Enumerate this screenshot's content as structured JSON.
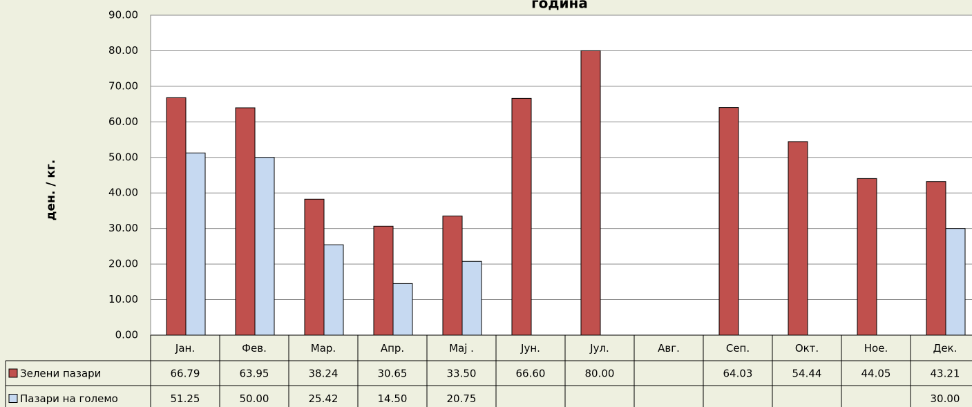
{
  "chart_data": {
    "type": "bar",
    "title": "година",
    "ylabel": "ден. / кг.",
    "categories": [
      "Јан.",
      "Фев.",
      "Мар.",
      "Апр.",
      "Мај .",
      "Јун.",
      "Јул.",
      "Авг.",
      "Сеп.",
      "Окт.",
      "Ное.",
      "Дек."
    ],
    "series": [
      {
        "name": "Зелени пазари",
        "color": "#c0504d",
        "values": [
          66.79,
          63.95,
          38.24,
          30.65,
          33.5,
          66.6,
          80,
          null,
          64.03,
          54.44,
          44.05,
          43.21
        ],
        "value_labels": [
          "66.79",
          "63.95",
          "38.24",
          "30.65",
          "33.50",
          "66.60",
          "80.00",
          null,
          "64.03",
          "54.44",
          "44.05",
          "43.21"
        ]
      },
      {
        "name": "Пазари на големо",
        "color": "#c6d9f1",
        "values": [
          51.25,
          50,
          25.42,
          14.5,
          20.75,
          null,
          null,
          null,
          null,
          null,
          null,
          30
        ],
        "value_labels": [
          "51.25",
          "50.00",
          "25.42",
          "14.50",
          "20.75",
          null,
          null,
          null,
          null,
          null,
          null,
          "30.00"
        ]
      }
    ],
    "ylim": [
      0,
      90
    ],
    "yticks": [
      {
        "value": 0,
        "label": "0.00"
      },
      {
        "value": 10,
        "label": "10.00"
      },
      {
        "value": 20,
        "label": "20.00"
      },
      {
        "value": 30,
        "label": "30.00"
      },
      {
        "value": 40,
        "label": "40.00"
      },
      {
        "value": 50,
        "label": "50.00"
      },
      {
        "value": 60,
        "label": "60.00"
      },
      {
        "value": 70,
        "label": "70.00"
      },
      {
        "value": 80,
        "label": "80.00"
      },
      {
        "value": 90,
        "label": "90.00"
      }
    ],
    "grid": true,
    "data_table": true
  }
}
